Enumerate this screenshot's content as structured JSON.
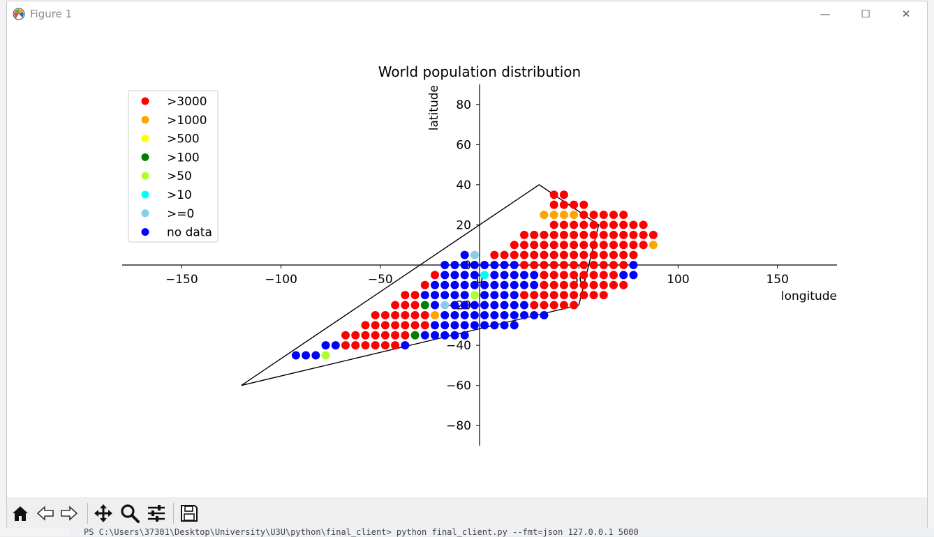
{
  "window": {
    "title": "Figure 1",
    "controls": {
      "minimize": "—",
      "maximize": "☐",
      "close": "✕"
    }
  },
  "background": {
    "terminal_line": "PS C:\\Users\\37301\\Desktop\\University\\U3U\\python\\final_client> python final_client.py --fmt=json 127.0.0.1 5000"
  },
  "toolbar": {
    "buttons": [
      "home-icon",
      "back-icon",
      "forward-icon",
      "pan-icon",
      "zoom-icon",
      "configure-subplots-icon",
      "save-icon"
    ]
  },
  "chart_data": {
    "type": "scatter",
    "title": "World population distribution",
    "xlabel": "longitude",
    "ylabel": "latitude",
    "xlim": [
      -180,
      180
    ],
    "ylim": [
      -90,
      90
    ],
    "xticks": [
      -150,
      -100,
      -50,
      0,
      50,
      100,
      150
    ],
    "yticks": [
      -80,
      -60,
      -40,
      -20,
      0,
      20,
      40,
      60,
      80
    ],
    "xtick_labels": [
      "−150",
      "−100",
      "−50",
      "0",
      "50",
      "100",
      "150"
    ],
    "ytick_labels": [
      "−80",
      "−60",
      "−40",
      "−20",
      "0",
      "20",
      "40",
      "60",
      "80"
    ],
    "axes_style": "spines centered at origin",
    "grid": false,
    "legend_position": "upper left",
    "polygon": [
      [
        -120,
        -60
      ],
      [
        30,
        40
      ],
      [
        60,
        20
      ],
      [
        50,
        -20
      ],
      [
        -120,
        -60
      ]
    ],
    "categories": [
      {
        "key": "r",
        "label": ">3000",
        "color": "#ff0000"
      },
      {
        "key": "o",
        "label": ">1000",
        "color": "#ffa500"
      },
      {
        "key": "y",
        "label": ">500",
        "color": "#ffff00"
      },
      {
        "key": "g",
        "label": ">100",
        "color": "#008000"
      },
      {
        "key": "l",
        "label": ">50",
        "color": "#adff2f"
      },
      {
        "key": "c",
        "label": ">10",
        "color": "#00ffff"
      },
      {
        "key": "s",
        "label": ">=0",
        "color": "#87ceeb"
      },
      {
        "key": "b",
        "label": "no data",
        "color": "#0000ff"
      }
    ],
    "grid_points": {
      "x_start": -92.5,
      "x_step": 5,
      "y_start": 35,
      "y_step": -5,
      "rows": [
        "..........................rr.....",
        "..........................rrrr...",
        ".........................oooorrrrr",
        "..........................rrrrrrrrrr",
        ".......................rrrrrrrrrrrrrr",
        "......................rrrrrrrrrrrrrro",
        ".................bs.rrrrrrrrrrrrrrr",
        "...............bbbbbbbbrrrrrrrrrrrb",
        "..............rbbbbcbbbbbrrrrrrrrbb",
        ".............rbbbbbbbbbbbrrrrrrrrr",
        "...........rrbbbbblbbbbrrrrrrrrr",
        "..........rrrgbsbbbbbbbbrrrrr",
        "........rrrrrrobbbbbbbbbbb",
        ".......rrrrrrrbbbbbbbbb",
        ".....rrrrrrrgbbbbb",
        "...bbrrrrrrb",
        "bbbl"
      ]
    }
  }
}
